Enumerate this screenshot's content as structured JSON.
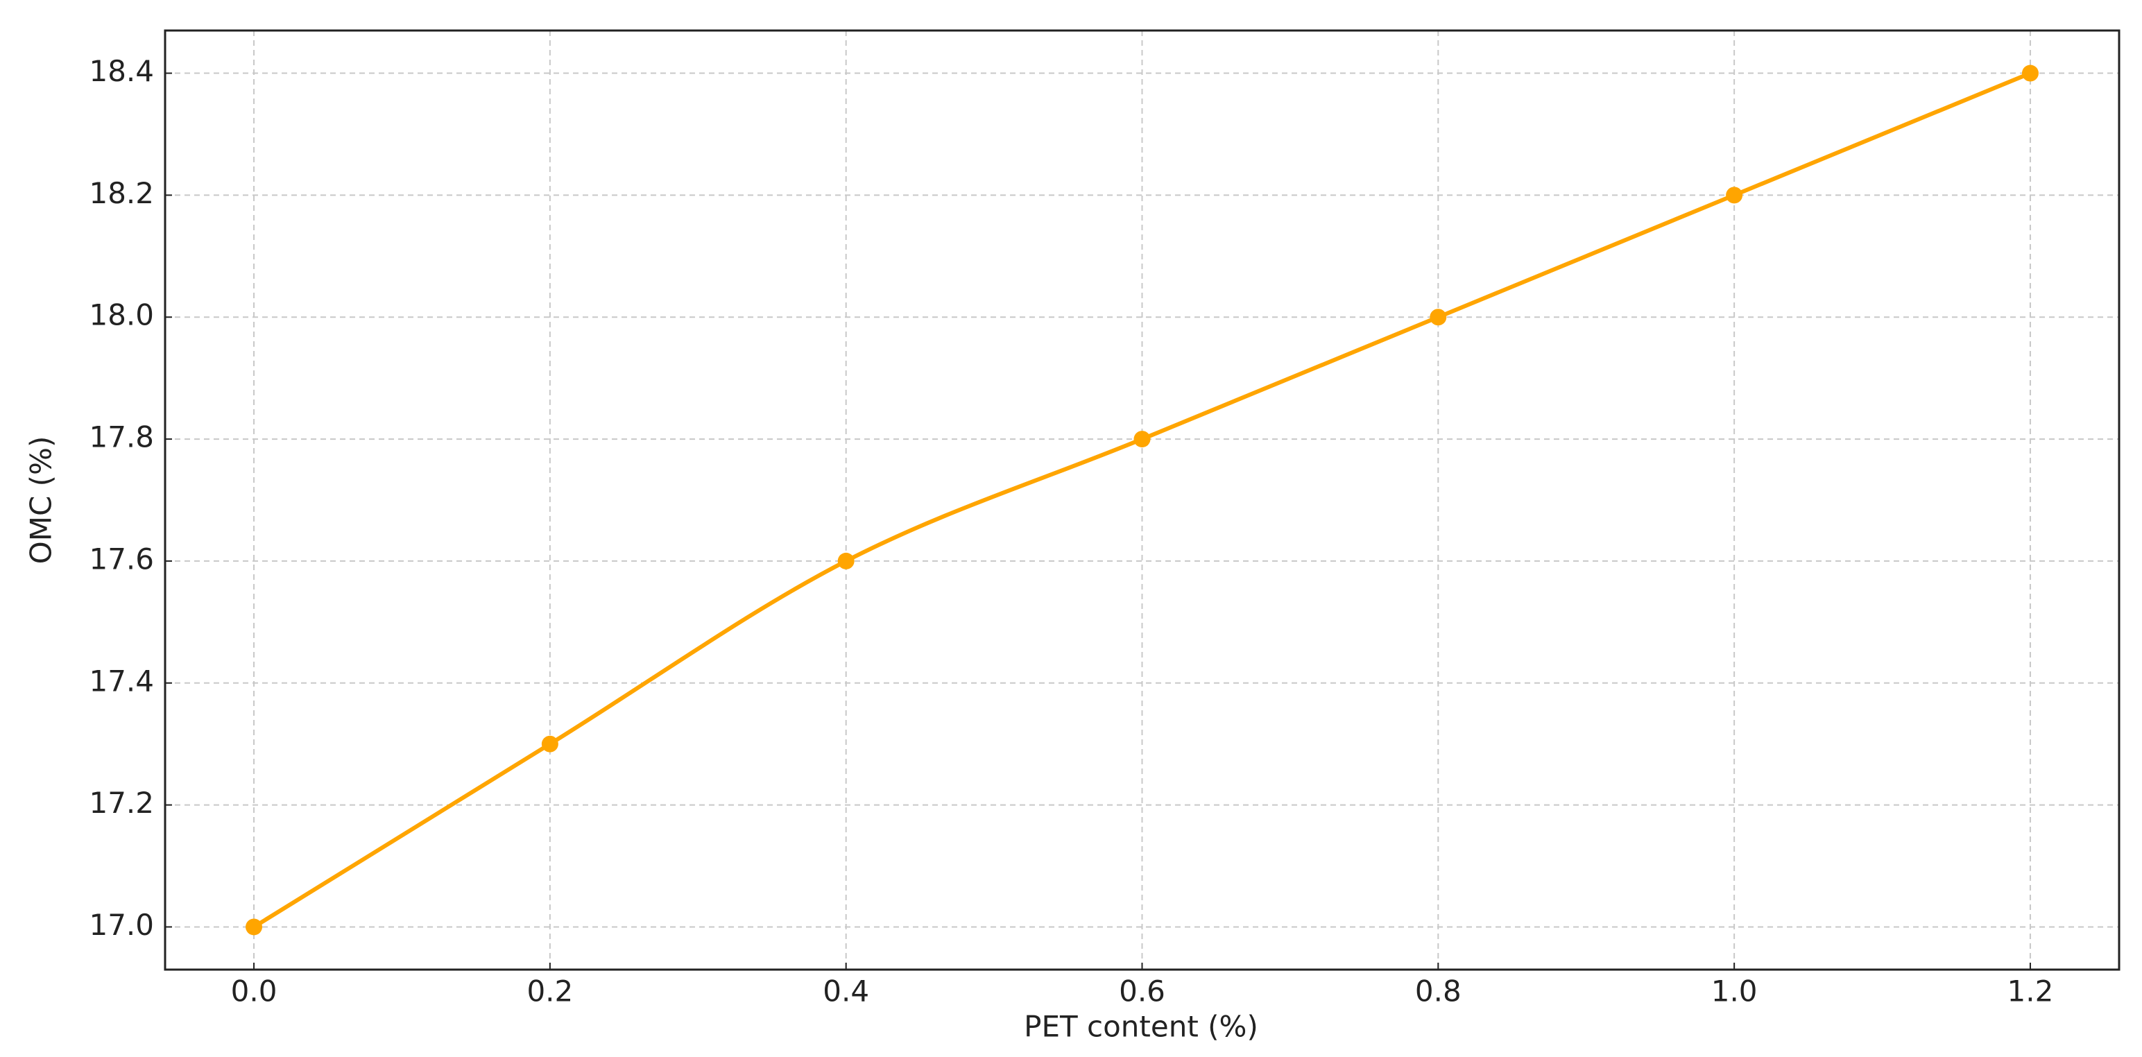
{
  "chart_data": {
    "type": "line",
    "xlabel": "PET content (%)",
    "ylabel": "OMC (%)",
    "x": [
      0,
      0.2,
      0.4,
      0.6,
      0.8,
      1.0,
      1.2
    ],
    "series": [
      {
        "color": "#FFA500",
        "values": [
          17.0,
          17.3,
          17.6,
          17.8,
          18.0,
          18.2,
          18.4
        ]
      }
    ],
    "xlim": [
      -0.06,
      1.26
    ],
    "ylim": [
      16.93,
      18.47
    ],
    "xticks": [
      {
        "value": 0,
        "label": "0.0"
      },
      0.2,
      0.4,
      0.6,
      0.8,
      {
        "value": 1.0,
        "label": "1.0"
      },
      1.2
    ],
    "yticks": [
      {
        "value": 17.0,
        "label": "17.0"
      },
      17.2,
      17.4,
      17.6,
      17.8,
      {
        "value": 18.0,
        "label": "18.0"
      },
      18.2,
      18.4
    ],
    "grid": true
  }
}
